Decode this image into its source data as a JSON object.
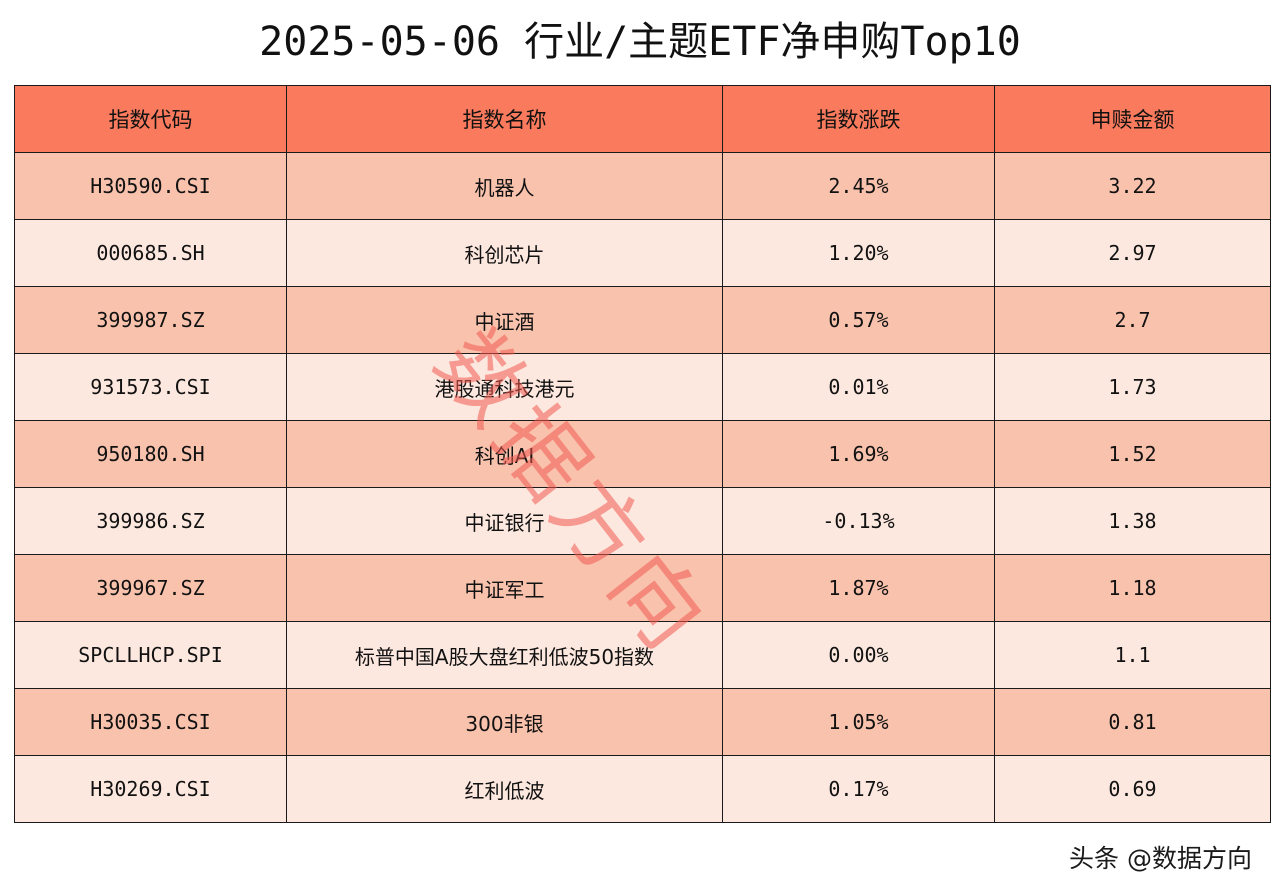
{
  "title": "2025-05-06 行业/主题ETF净申购Top10",
  "table": {
    "headers": [
      "指数代码",
      "指数名称",
      "指数涨跌",
      "申赎金额"
    ],
    "rows": [
      {
        "code": "H30590.CSI",
        "name": "机器人",
        "change": "2.45%",
        "amount": "3.22"
      },
      {
        "code": "000685.SH",
        "name": "科创芯片",
        "change": "1.20%",
        "amount": "2.97"
      },
      {
        "code": "399987.SZ",
        "name": "中证酒",
        "change": "0.57%",
        "amount": "2.7"
      },
      {
        "code": "931573.CSI",
        "name": "港股通科技港元",
        "change": "0.01%",
        "amount": "1.73"
      },
      {
        "code": "950180.SH",
        "name": "科创AI",
        "change": "1.69%",
        "amount": "1.52"
      },
      {
        "code": "399986.SZ",
        "name": "中证银行",
        "change": "-0.13%",
        "amount": "1.38"
      },
      {
        "code": "399967.SZ",
        "name": "中证军工",
        "change": "1.87%",
        "amount": "1.18"
      },
      {
        "code": "SPCLLHCP.SPI",
        "name": "标普中国A股大盘红利低波50指数",
        "change": "0.00%",
        "amount": "1.1"
      },
      {
        "code": "H30035.CSI",
        "name": "300非银",
        "change": "1.05%",
        "amount": "0.81"
      },
      {
        "code": "H30269.CSI",
        "name": "红利低波",
        "change": "0.17%",
        "amount": "0.69"
      }
    ]
  },
  "watermark": "数据方向",
  "credit": "头条 @数据方向",
  "colors": {
    "header_bg": "#f97a5c",
    "row_odd_bg": "#f9c2ad",
    "row_even_bg": "#fde8df",
    "watermark": "#f05a50"
  }
}
